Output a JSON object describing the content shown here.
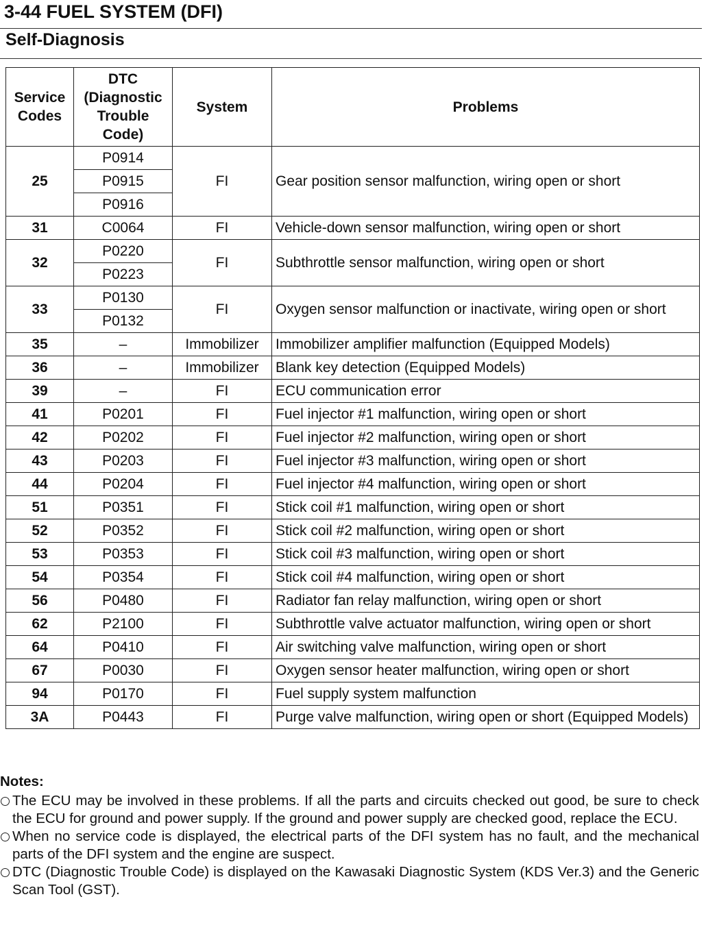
{
  "header": {
    "title": "3-44 FUEL SYSTEM (DFI)",
    "section": "Self-Diagnosis"
  },
  "table": {
    "columns": [
      "Service Codes",
      "DTC (Diagnostic Trouble Code)",
      "System",
      "Problems"
    ],
    "rows": [
      {
        "service": "25",
        "dtcs": [
          "P0914",
          "P0915",
          "P0916"
        ],
        "system": "FI",
        "problem": "Gear position sensor malfunction, wiring open or short"
      },
      {
        "service": "31",
        "dtcs": [
          "C0064"
        ],
        "system": "FI",
        "problem": "Vehicle-down sensor malfunction, wiring open or short"
      },
      {
        "service": "32",
        "dtcs": [
          "P0220",
          "P0223"
        ],
        "system": "FI",
        "problem": "Subthrottle sensor malfunction, wiring open or short"
      },
      {
        "service": "33",
        "dtcs": [
          "P0130",
          "P0132"
        ],
        "system": "FI",
        "problem": "Oxygen sensor malfunction or inactivate, wiring open or short"
      },
      {
        "service": "35",
        "dtcs": [
          "–"
        ],
        "system": "Immobilizer",
        "problem": "Immobilizer amplifier malfunction (Equipped Models)"
      },
      {
        "service": "36",
        "dtcs": [
          "–"
        ],
        "system": "Immobilizer",
        "problem": "Blank key detection (Equipped Models)"
      },
      {
        "service": "39",
        "dtcs": [
          "–"
        ],
        "system": "FI",
        "problem": "ECU communication error"
      },
      {
        "service": "41",
        "dtcs": [
          "P0201"
        ],
        "system": "FI",
        "problem": "Fuel injector #1 malfunction, wiring open or short"
      },
      {
        "service": "42",
        "dtcs": [
          "P0202"
        ],
        "system": "FI",
        "problem": "Fuel injector #2 malfunction, wiring open or short"
      },
      {
        "service": "43",
        "dtcs": [
          "P0203"
        ],
        "system": "FI",
        "problem": "Fuel injector #3 malfunction, wiring open or short"
      },
      {
        "service": "44",
        "dtcs": [
          "P0204"
        ],
        "system": "FI",
        "problem": "Fuel injector #4 malfunction, wiring open or short"
      },
      {
        "service": "51",
        "dtcs": [
          "P0351"
        ],
        "system": "FI",
        "problem": "Stick coil #1 malfunction, wiring open or short"
      },
      {
        "service": "52",
        "dtcs": [
          "P0352"
        ],
        "system": "FI",
        "problem": "Stick coil #2 malfunction, wiring open or short"
      },
      {
        "service": "53",
        "dtcs": [
          "P0353"
        ],
        "system": "FI",
        "problem": "Stick coil #3 malfunction, wiring open or short"
      },
      {
        "service": "54",
        "dtcs": [
          "P0354"
        ],
        "system": "FI",
        "problem": "Stick coil #4 malfunction, wiring open or short"
      },
      {
        "service": "56",
        "dtcs": [
          "P0480"
        ],
        "system": "FI",
        "problem": "Radiator fan relay malfunction, wiring open or short"
      },
      {
        "service": "62",
        "dtcs": [
          "P2100"
        ],
        "system": "FI",
        "problem": "Subthrottle valve actuator malfunction, wiring open or short"
      },
      {
        "service": "64",
        "dtcs": [
          "P0410"
        ],
        "system": "FI",
        "problem": "Air switching valve malfunction, wiring open or short"
      },
      {
        "service": "67",
        "dtcs": [
          "P0030"
        ],
        "system": "FI",
        "problem": "Oxygen sensor heater malfunction, wiring open or short"
      },
      {
        "service": "94",
        "dtcs": [
          "P0170"
        ],
        "system": "FI",
        "problem": "Fuel supply system malfunction"
      },
      {
        "service": "3A",
        "dtcs": [
          "P0443"
        ],
        "system": "FI",
        "problem": "Purge valve malfunction, wiring open or short (Equipped Models)"
      }
    ]
  },
  "notes": {
    "title": "Notes:",
    "items": [
      "The ECU may be involved in these problems. If all the parts and circuits checked out good, be sure to check the ECU for ground and power supply. If the ground and power supply are checked good, replace the ECU.",
      "When no service code is displayed, the electrical parts of the DFI system has no fault, and the mechanical parts of the DFI system and the engine are suspect.",
      "DTC (Diagnostic Trouble Code) is displayed on the Kawasaki Diagnostic System (KDS Ver.3) and the Generic Scan Tool (GST)."
    ]
  }
}
